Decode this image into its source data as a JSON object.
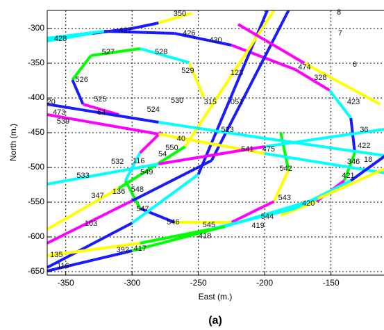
{
  "chart_data": {
    "type": "line",
    "title": "(a)",
    "xlabel": "East (m.)",
    "ylabel": "North (m.)",
    "xlim": [
      -364,
      -110
    ],
    "ylim": [
      -655,
      -274
    ],
    "xticks": [
      -350,
      -300,
      -250,
      -200,
      -150
    ],
    "yticks": [
      -300,
      -350,
      -400,
      -450,
      -500,
      -550,
      -600,
      -650
    ],
    "grid": true,
    "series": [
      {
        "x": [
          -364,
          -330,
          -300,
          -280,
          -255
        ],
        "y": [
          -318,
          -307,
          -300,
          -292,
          -278
        ],
        "colors": [
          "#00ffff",
          "#1a1aff",
          "#1a1aff",
          "#ffff00"
        ]
      },
      {
        "x": [
          -364,
          -321,
          -268,
          -225,
          -177,
          -151,
          -135,
          -132,
          -140,
          -161,
          -188
        ],
        "y": [
          -314,
          -304,
          -307,
          -324,
          -359,
          -389,
          -429,
          -479,
          -519,
          -549,
          -569
        ],
        "colors": [
          "#00ffff",
          "#1a1aff",
          "#1a1aff",
          "#ff00ff",
          "#ff00ff",
          "#00ffff",
          "#1a1aff",
          "#00ff00",
          "#ff00ff",
          "#ffff00"
        ]
      },
      {
        "x": [
          -246,
          -257,
          -294,
          -331,
          -345,
          -337,
          -310
        ],
        "y": [
          -399,
          -349,
          -329,
          -339,
          -374,
          -409,
          -424
        ],
        "colors": [
          "#ffff00",
          "#00ffff",
          "#00ff00",
          "#00ff00",
          "#1a1aff",
          "#ff00ff"
        ]
      },
      {
        "x": [
          -188,
          -182,
          -193,
          -225,
          -268,
          -294,
          -305,
          -294,
          -278
        ],
        "y": [
          -449,
          -504,
          -549,
          -579,
          -579,
          -559,
          -519,
          -479,
          -449
        ],
        "colors": [
          "#00ff00",
          "#ffff00",
          "#ff00ff",
          "#ffff00",
          "#1a1aff",
          "#00ff00",
          "#00ffff",
          "#ff00ff"
        ]
      },
      {
        "x": [
          -364,
          -300,
          -240,
          -182
        ],
        "y": [
          -609,
          -548,
          -490,
          -274
        ],
        "colors": [
          "#ff00ff",
          "#1a1aff",
          "#1a1aff"
        ]
      },
      {
        "x": [
          -364,
          -300,
          -250,
          -198
        ],
        "y": [
          -644,
          -580,
          -510,
          -274
        ],
        "colors": [
          "#1a1aff",
          "#00ffff",
          "#1a1aff"
        ]
      },
      {
        "x": [
          -364,
          -310,
          -260,
          -193
        ],
        "y": [
          -589,
          -530,
          -470,
          -274
        ],
        "colors": [
          "#ffff00",
          "#00ff00",
          "#ffff00"
        ]
      },
      {
        "x": [
          -364,
          -280,
          -200,
          -106
        ],
        "y": [
          -424,
          -452,
          -480,
          -509
        ],
        "colors": [
          "#ff00ff",
          "#ffff00",
          "#00ffff"
        ]
      },
      {
        "x": [
          -364,
          -280,
          -200,
          -106
        ],
        "y": [
          -409,
          -435,
          -458,
          -484
        ],
        "colors": [
          "#1a1aff",
          "#00ffff",
          "#00ffff"
        ]
      },
      {
        "x": [
          -220,
          -170,
          -113
        ],
        "y": [
          -294,
          -350,
          -409
        ],
        "colors": [
          "#ff00ff",
          "#ffff00"
        ]
      },
      {
        "x": [
          -364,
          -294,
          -241,
          -177,
          -135,
          -106
        ],
        "y": [
          -627,
          -609,
          -589,
          -559,
          -519,
          -479
        ],
        "colors": [
          "#ffff00",
          "#00ff00",
          "#00ffff",
          "#00ffff",
          "#1a1aff"
        ]
      },
      {
        "x": [
          -364,
          -300,
          -230,
          -160,
          -106
        ],
        "y": [
          -649,
          -620,
          -585,
          -545,
          -499
        ],
        "colors": [
          "#1a1aff",
          "#00ff00",
          "#00ffff",
          "#ffff00"
        ]
      },
      {
        "x": [
          -364,
          -280,
          -200,
          -106
        ],
        "y": [
          -524,
          -495,
          -470,
          -444
        ],
        "colors": [
          "#00ffff",
          "#ff00ff",
          "#00ffff"
        ]
      }
    ],
    "annotations": [
      {
        "text": "350",
        "x": -264,
        "y": -279
      },
      {
        "text": "427",
        "x": -305,
        "y": -303
      },
      {
        "text": "428",
        "x": -354,
        "y": -315
      },
      {
        "text": "426",
        "x": -257,
        "y": -307
      },
      {
        "text": "430",
        "x": -237,
        "y": -317
      },
      {
        "text": "8",
        "x": -144,
        "y": -277
      },
      {
        "text": "7",
        "x": -143,
        "y": -307
      },
      {
        "text": "527",
        "x": -318,
        "y": -334
      },
      {
        "text": "528",
        "x": -278,
        "y": -334
      },
      {
        "text": "529",
        "x": -258,
        "y": -361
      },
      {
        "text": "526",
        "x": -338,
        "y": -374
      },
      {
        "text": "525",
        "x": -324,
        "y": -402
      },
      {
        "text": "524",
        "x": -284,
        "y": -417
      },
      {
        "text": "530",
        "x": -266,
        "y": -404
      },
      {
        "text": "315",
        "x": -241,
        "y": -406
      },
      {
        "text": "051",
        "x": -221,
        "y": -406
      },
      {
        "text": "123",
        "x": -221,
        "y": -364
      },
      {
        "text": "474",
        "x": -170,
        "y": -356
      },
      {
        "text": "328",
        "x": -158,
        "y": -371
      },
      {
        "text": "6",
        "x": -132,
        "y": -352
      },
      {
        "text": "423",
        "x": -133,
        "y": -406
      },
      {
        "text": "20",
        "x": -361,
        "y": -406
      },
      {
        "text": "473",
        "x": -355,
        "y": -421
      },
      {
        "text": "64",
        "x": -323,
        "y": -421
      },
      {
        "text": "539",
        "x": -352,
        "y": -434
      },
      {
        "text": "523",
        "x": -228,
        "y": -446
      },
      {
        "text": "36",
        "x": -125,
        "y": -446
      },
      {
        "text": "422",
        "x": -125,
        "y": -469
      },
      {
        "text": "475",
        "x": -197,
        "y": -474
      },
      {
        "text": "541",
        "x": -213,
        "y": -474
      },
      {
        "text": "550",
        "x": -270,
        "y": -472
      },
      {
        "text": "40",
        "x": -263,
        "y": -459
      },
      {
        "text": "54",
        "x": -277,
        "y": -481
      },
      {
        "text": "549",
        "x": -289,
        "y": -507
      },
      {
        "text": "532",
        "x": -311,
        "y": -492
      },
      {
        "text": "116",
        "x": -295,
        "y": -491
      },
      {
        "text": "533",
        "x": -337,
        "y": -512
      },
      {
        "text": "542",
        "x": -184,
        "y": -502
      },
      {
        "text": "18",
        "x": -122,
        "y": -489
      },
      {
        "text": "346",
        "x": -133,
        "y": -492
      },
      {
        "text": "421",
        "x": -137,
        "y": -512
      },
      {
        "text": "548",
        "x": -296,
        "y": -532
      },
      {
        "text": "136",
        "x": -310,
        "y": -535
      },
      {
        "text": "347",
        "x": -326,
        "y": -541
      },
      {
        "text": "543",
        "x": -185,
        "y": -544
      },
      {
        "text": "420",
        "x": -167,
        "y": -552
      },
      {
        "text": "547",
        "x": -292,
        "y": -560
      },
      {
        "text": "544",
        "x": -198,
        "y": -571
      },
      {
        "text": "419",
        "x": -205,
        "y": -584
      },
      {
        "text": "546",
        "x": -269,
        "y": -579
      },
      {
        "text": "545",
        "x": -242,
        "y": -583
      },
      {
        "text": "418",
        "x": -245,
        "y": -599
      },
      {
        "text": "103",
        "x": -331,
        "y": -581
      },
      {
        "text": "392",
        "x": -307,
        "y": -619
      },
      {
        "text": "417",
        "x": -294,
        "y": -617
      },
      {
        "text": "135",
        "x": -357,
        "y": -626
      },
      {
        "text": "116",
        "x": -352,
        "y": -642
      }
    ]
  }
}
